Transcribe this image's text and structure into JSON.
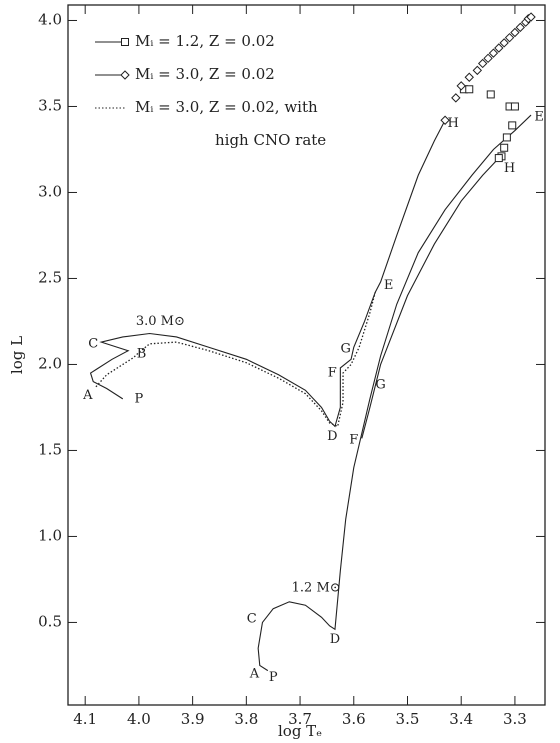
{
  "chart_data": {
    "type": "line",
    "x_label": "log Tₑ",
    "y_label": "log L",
    "xlim": [
      4.132,
      3.244
    ],
    "ylim": [
      0.02,
      4.09
    ],
    "xticks": [
      4.1,
      {
        "value": 4.0,
        "label": "4.0"
      },
      3.9,
      3.8,
      3.7,
      3.6,
      3.5,
      3.4,
      3.3
    ],
    "yticks": [
      0.5,
      {
        "value": 1.0,
        "label": "1.0"
      },
      1.5,
      {
        "value": 2.0,
        "label": "2.0"
      },
      2.5,
      {
        "value": 3.0,
        "label": "3.0"
      },
      3.5,
      {
        "value": 4.0,
        "label": "4.0"
      }
    ],
    "series": [
      {
        "name": "Mᵢ = 1.2, Z = 0.02",
        "color": "#222222",
        "style": "solid",
        "marker": "square",
        "x": [
          3.76,
          3.775,
          3.778,
          3.77,
          3.75,
          3.72,
          3.69,
          3.66,
          3.645,
          3.635,
          3.625,
          3.615,
          3.6,
          3.585,
          3.57,
          3.55,
          3.52,
          3.48,
          3.43,
          3.38,
          3.34,
          3.3,
          3.27,
          null,
          3.585,
          3.57,
          3.55,
          3.5,
          3.45,
          3.4,
          3.36,
          3.33
        ],
        "y": [
          0.22,
          0.25,
          0.35,
          0.5,
          0.58,
          0.62,
          0.6,
          0.53,
          0.48,
          0.46,
          0.8,
          1.1,
          1.4,
          1.6,
          1.8,
          2.05,
          2.35,
          2.65,
          2.9,
          3.1,
          3.25,
          3.36,
          3.45,
          null,
          1.57,
          1.75,
          2.0,
          2.4,
          2.7,
          2.95,
          3.1,
          3.2
        ],
        "marker_x": [
          3.395,
          3.385,
          3.345,
          3.31,
          3.3,
          3.305,
          3.315,
          3.32,
          3.325,
          3.33
        ],
        "marker_y": [
          3.6,
          3.6,
          3.57,
          3.5,
          3.5,
          3.39,
          3.32,
          3.26,
          3.21,
          3.2
        ]
      },
      {
        "name": "Mᵢ = 3.0, Z = 0.02",
        "color": "#222222",
        "style": "solid",
        "marker": "diamond",
        "x": [
          4.03,
          4.06,
          4.085,
          4.09,
          4.08,
          4.05,
          4.02,
          4.07,
          4.03,
          3.98,
          3.93,
          3.87,
          3.8,
          3.74,
          3.69,
          3.66,
          3.645,
          3.635,
          3.625,
          3.625,
          3.605,
          3.6,
          3.58,
          3.56,
          3.55,
          3.52,
          3.48,
          3.45,
          3.43
        ],
        "y": [
          1.8,
          1.86,
          1.9,
          1.95,
          1.97,
          2.03,
          2.08,
          2.13,
          2.16,
          2.18,
          2.16,
          2.1,
          2.03,
          1.94,
          1.85,
          1.75,
          1.67,
          1.64,
          1.75,
          1.98,
          2.03,
          2.1,
          2.25,
          2.42,
          2.48,
          2.75,
          3.1,
          3.3,
          3.42
        ],
        "marker_x": [
          3.43,
          3.41,
          3.4,
          3.385,
          3.37,
          3.36,
          3.35,
          3.34,
          3.33,
          3.32,
          3.31,
          3.3,
          3.29,
          3.28,
          3.275,
          3.27
        ],
        "marker_y": [
          3.42,
          3.55,
          3.62,
          3.67,
          3.71,
          3.75,
          3.78,
          3.81,
          3.84,
          3.87,
          3.9,
          3.93,
          3.96,
          3.99,
          4.01,
          4.02
        ]
      },
      {
        "name": "Mᵢ = 3.0, Z = 0.02, with\nhigh CNO rate",
        "color": "#222222",
        "style": "dotted",
        "x": [
          4.08,
          4.06,
          4.03,
          4.01,
          4.0,
          3.98,
          3.93,
          3.87,
          3.8,
          3.74,
          3.69,
          3.66,
          3.645,
          3.63,
          3.62,
          3.62,
          3.605,
          3.59,
          3.57,
          3.56
        ],
        "y": [
          1.87,
          1.94,
          2.0,
          2.04,
          2.07,
          2.12,
          2.13,
          2.08,
          2.01,
          1.92,
          1.83,
          1.73,
          1.66,
          1.64,
          1.78,
          1.95,
          2.0,
          2.1,
          2.3,
          2.42
        ]
      }
    ],
    "annotations": [
      {
        "text": "3.0 M⊙",
        "x": 3.96,
        "y": 2.25
      },
      {
        "text": "1.2 M⊙",
        "x": 3.67,
        "y": 0.7
      },
      {
        "text": "A",
        "x": 4.095,
        "y": 1.82
      },
      {
        "text": "P",
        "x": 4.0,
        "y": 1.8
      },
      {
        "text": "C",
        "x": 4.085,
        "y": 2.12
      },
      {
        "text": "B",
        "x": 3.995,
        "y": 2.06
      },
      {
        "text": "D",
        "x": 3.64,
        "y": 1.58
      },
      {
        "text": "F",
        "x": 3.64,
        "y": 1.95
      },
      {
        "text": "G",
        "x": 3.615,
        "y": 2.09
      },
      {
        "text": "E",
        "x": 3.535,
        "y": 2.46
      },
      {
        "text": "H",
        "x": 3.415,
        "y": 3.4
      },
      {
        "text": "G",
        "x": 3.55,
        "y": 1.88
      },
      {
        "text": "F",
        "x": 3.6,
        "y": 1.56
      },
      {
        "text": "E",
        "x": 3.255,
        "y": 3.44
      },
      {
        "text": "H",
        "x": 3.31,
        "y": 3.14
      },
      {
        "text": "C",
        "x": 3.79,
        "y": 0.52
      },
      {
        "text": "D",
        "x": 3.635,
        "y": 0.4
      },
      {
        "text": "A",
        "x": 3.785,
        "y": 0.2
      },
      {
        "text": "P",
        "x": 3.75,
        "y": 0.18
      }
    ]
  }
}
